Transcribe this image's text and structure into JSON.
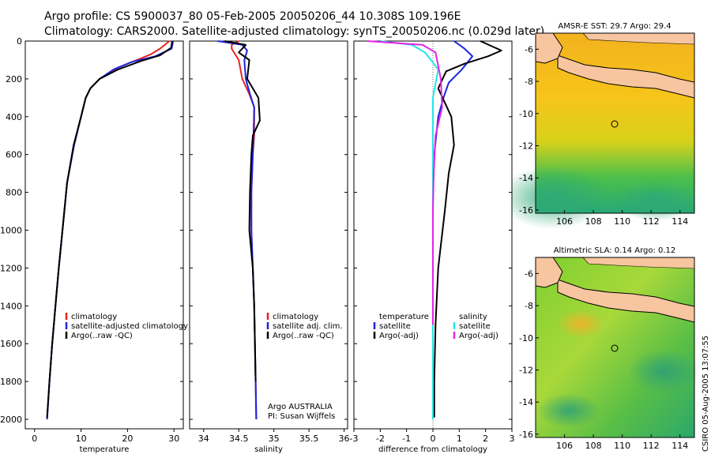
{
  "header": {
    "line1": "Argo profile: CS 5900037_80 05-Feb-2005 20050206_44 10.308S 109.196E",
    "line2": "Climatology: CARS2000. Satellite-adjusted climatology: synTS_20050206.nc (0.029d later)"
  },
  "credit": "CSIRO 05-Aug-2005 13:07:55",
  "colors": {
    "red": "#e8231e",
    "blue": "#1a24e0",
    "black": "#000000",
    "cyan": "#22e6e6",
    "magenta": "#e622e6",
    "land": "#f7c59f"
  },
  "chart_data": [
    {
      "type": "line",
      "name": "temperature-panel",
      "xlabel": "temperature",
      "ylabel": "",
      "xlim": [
        -2,
        32
      ],
      "ylim": [
        2050,
        0
      ],
      "xticks": [
        "0",
        "10",
        "20",
        "30"
      ],
      "xtick_values": [
        0,
        10,
        20,
        30
      ],
      "yticks": [
        "0",
        "200",
        "400",
        "600",
        "800",
        "1000",
        "1200",
        "1400",
        "1600",
        "1800",
        "2000"
      ],
      "ytick_values": [
        0,
        200,
        400,
        600,
        800,
        1000,
        1200,
        1400,
        1600,
        1800,
        2000
      ],
      "legend": [
        "climatology",
        "satellite-adjusted climatology",
        "Argo(..raw -QC)"
      ],
      "legend_colors": [
        "red",
        "blue",
        "black"
      ],
      "series": [
        {
          "name": "climatology",
          "color": "red",
          "x": [
            29,
            27,
            25,
            22,
            18,
            14,
            12,
            11,
            10,
            8.5,
            7,
            6,
            5.2,
            4.5,
            3.8,
            3.2,
            2.7
          ],
          "y": [
            0,
            40,
            70,
            100,
            140,
            200,
            250,
            300,
            400,
            550,
            750,
            1000,
            1200,
            1400,
            1600,
            1800,
            2000
          ]
        },
        {
          "name": "satellite-adjusted climatology",
          "color": "blue",
          "x": [
            29.8,
            29.5,
            26,
            21,
            17,
            14,
            12,
            11,
            10,
            8.5,
            7,
            6,
            5.2,
            4.5,
            3.8,
            3.2,
            2.7
          ],
          "y": [
            0,
            40,
            80,
            110,
            150,
            200,
            250,
            300,
            400,
            550,
            750,
            1000,
            1200,
            1400,
            1600,
            1800,
            2000
          ]
        },
        {
          "name": "Argo(..raw -QC)",
          "color": "black",
          "x": [
            29.6,
            29.4,
            27,
            23,
            18,
            14,
            12,
            11,
            10,
            8.4,
            7,
            6,
            5.2,
            4.5,
            3.8,
            3.2,
            2.7
          ],
          "y": [
            0,
            35,
            75,
            105,
            150,
            200,
            250,
            300,
            400,
            550,
            750,
            1000,
            1200,
            1400,
            1600,
            1800,
            1990
          ]
        }
      ]
    },
    {
      "type": "line",
      "name": "salinity-panel",
      "xlabel": "salinity",
      "xlim": [
        33.8,
        36.05
      ],
      "ylim": [
        2050,
        0
      ],
      "xticks": [
        "34",
        "34.5",
        "35",
        "35.5",
        "36"
      ],
      "xtick_values": [
        34,
        34.5,
        35,
        35.5,
        36
      ],
      "legend": [
        "climatology",
        "satellite adj. clim.",
        "Argo(..raw -QC)"
      ],
      "legend_colors": [
        "red",
        "blue",
        "black"
      ],
      "annotation": [
        "Argo AUSTRALIA",
        "PI: Susan Wijffels"
      ],
      "series": [
        {
          "name": "climatology",
          "color": "red",
          "x": [
            34.5,
            34.4,
            34.4,
            34.5,
            34.55,
            34.65,
            34.72,
            34.72,
            34.7,
            34.68,
            34.68,
            34.7,
            34.72,
            34.73,
            34.74,
            34.75
          ],
          "y": [
            0,
            20,
            40,
            100,
            200,
            280,
            350,
            500,
            600,
            800,
            1000,
            1200,
            1400,
            1600,
            1800,
            2000
          ]
        },
        {
          "name": "satellite adj. clim.",
          "color": "blue",
          "x": [
            34.2,
            34.55,
            34.62,
            34.58,
            34.6,
            34.66,
            34.72,
            34.71,
            34.7,
            34.68,
            34.68,
            34.7,
            34.72,
            34.73,
            34.74,
            34.75
          ],
          "y": [
            0,
            20,
            50,
            100,
            200,
            280,
            350,
            500,
            600,
            800,
            1000,
            1200,
            1400,
            1600,
            1800,
            2000
          ]
        },
        {
          "name": "Argo(..raw -QC)",
          "color": "black",
          "x": [
            34.3,
            34.6,
            34.5,
            34.65,
            34.62,
            34.78,
            34.8,
            34.7,
            34.68,
            34.66,
            34.65,
            34.7,
            34.72,
            34.73,
            34.74
          ],
          "y": [
            0,
            20,
            60,
            100,
            200,
            300,
            420,
            500,
            600,
            800,
            1000,
            1200,
            1400,
            1600,
            1800
          ]
        }
      ]
    },
    {
      "type": "line",
      "name": "difference-panel",
      "xlabel": "difference from climatology",
      "xlim": [
        -3,
        3
      ],
      "ylim": [
        2050,
        0
      ],
      "xticks": [
        "-3",
        "-2",
        "-1",
        "0",
        "1",
        "2",
        "3"
      ],
      "xtick_values": [
        -3,
        -2,
        -1,
        0,
        1,
        2,
        3
      ],
      "legend_left": [
        "temperature",
        "satellite",
        "Argo(-adj)"
      ],
      "legend_left_colors": [
        "none",
        "blue",
        "black"
      ],
      "legend_right": [
        "salinity",
        "satellite",
        "Argo(-adj)"
      ],
      "legend_right_colors": [
        "none",
        "cyan",
        "magenta"
      ],
      "series": [
        {
          "name": "temperature satellite",
          "color": "blue",
          "x": [
            0.8,
            1.2,
            1.5,
            1.1,
            0.6,
            0.4,
            0.2,
            0.05,
            0,
            0,
            0,
            0,
            0
          ],
          "y": [
            0,
            40,
            80,
            150,
            220,
            300,
            400,
            600,
            800,
            1200,
            1500,
            1800,
            2000
          ]
        },
        {
          "name": "temperature Argo(-adj)",
          "color": "black",
          "x": [
            1.8,
            2.6,
            2.1,
            1.2,
            0.5,
            0.2,
            0.7,
            0.8,
            0.6,
            0.45,
            0.2,
            0.1,
            0.05,
            0.05
          ],
          "y": [
            0,
            50,
            80,
            120,
            160,
            250,
            400,
            550,
            700,
            900,
            1200,
            1500,
            1800,
            1990
          ]
        },
        {
          "name": "salinity satellite",
          "color": "cyan",
          "x": [
            -2,
            -0.8,
            -0.3,
            0.2,
            0,
            0,
            0,
            0,
            0,
            0,
            0
          ],
          "y": [
            0,
            20,
            60,
            150,
            300,
            600,
            900,
            1200,
            1500,
            1800,
            2000
          ]
        },
        {
          "name": "salinity Argo(-adj)",
          "color": "magenta",
          "x": [
            -2.5,
            -0.4,
            0.1,
            0.3,
            0.35,
            0.1,
            0.03,
            0,
            0,
            0
          ],
          "y": [
            0,
            20,
            60,
            200,
            350,
            500,
            700,
            900,
            1200,
            1500
          ]
        }
      ]
    },
    {
      "type": "heatmap",
      "name": "sst-map",
      "title": "AMSR-E SST: 29.7 Argo: 29.4",
      "xlim": [
        104,
        115
      ],
      "ylim": [
        -16.2,
        -5
      ],
      "xticks": [
        "106",
        "108",
        "110",
        "112",
        "114"
      ],
      "yticks": [
        "-6",
        "-8",
        "-10",
        "-12",
        "-14",
        "-16"
      ],
      "marker": {
        "lon": 109.196,
        "lat": -10.308
      }
    },
    {
      "type": "heatmap",
      "name": "sla-map",
      "title": "Altimetric SLA: 0.14 Argo: 0.12",
      "xlim": [
        104,
        115
      ],
      "ylim": [
        -16.2,
        -5
      ],
      "xticks": [
        "106",
        "108",
        "110",
        "112",
        "114"
      ],
      "yticks": [
        "-6",
        "-8",
        "-10",
        "-12",
        "-14",
        "-16"
      ],
      "marker": {
        "lon": 109.196,
        "lat": -10.308
      }
    }
  ]
}
